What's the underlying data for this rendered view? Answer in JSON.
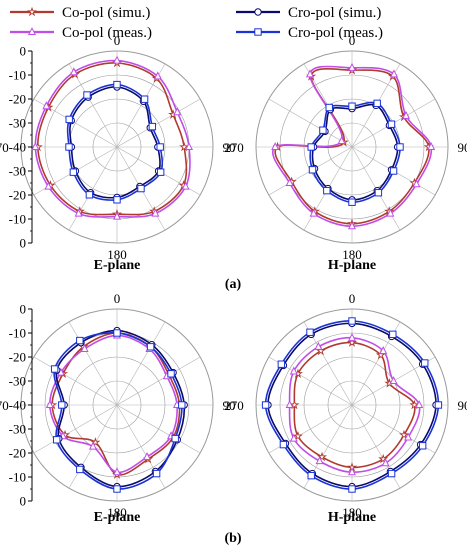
{
  "legend": {
    "entries": [
      {
        "label": "Co-pol  (simu.)",
        "color": "#b03a2e",
        "marker": "star"
      },
      {
        "label": "Co-pol  (meas.)",
        "color": "#c04de8",
        "marker": "triangle"
      },
      {
        "label": "Cro-pol (simu.)",
        "color": "#0a0a6e",
        "marker": "circle"
      },
      {
        "label": "Cro-pol (meas.)",
        "color": "#1a33d6",
        "marker": "square"
      }
    ]
  },
  "panel_labels": [
    "(a)",
    "(b)"
  ],
  "chart_data": [
    {
      "type": "polar",
      "panel": "(a)",
      "title": "E-plane",
      "angle_labels": [
        "0",
        "90",
        "180",
        "270"
      ],
      "r_ticks": [
        "0",
        "-10",
        "-20",
        "-30",
        "-40",
        "-30",
        "-20",
        "-10",
        "0"
      ],
      "rlim": [
        -40,
        0
      ],
      "angles": [
        0,
        30,
        60,
        90,
        120,
        150,
        180,
        210,
        240,
        270,
        300,
        330
      ],
      "series": [
        {
          "name": "Co-pol  (simu.)",
          "values": [
            -5,
            -7,
            -13,
            -12,
            -8,
            -9,
            -12,
            -9,
            -8,
            -7,
            -7,
            -5
          ]
        },
        {
          "name": "Co-pol  (meas.)",
          "values": [
            -4,
            -6,
            -11,
            -10,
            -7,
            -8,
            -11,
            -8,
            -7,
            -6,
            -6,
            -4
          ]
        },
        {
          "name": "Cro-pol (simu.)",
          "values": [
            -15,
            -18,
            -24,
            -23,
            -20,
            -21,
            -19,
            -18,
            -20,
            -21,
            -18,
            -16
          ]
        },
        {
          "name": "Cro-pol (meas.)",
          "values": [
            -14,
            -17,
            -23,
            -22,
            -19,
            -20,
            -18,
            -17,
            -19,
            -20,
            -17,
            -15
          ]
        }
      ]
    },
    {
      "type": "polar",
      "panel": "(a)",
      "title": "H-plane",
      "angle_labels": [
        "0",
        "90",
        "180",
        "270"
      ],
      "r_ticks": [
        "0",
        "-10",
        "-20",
        "-30",
        "-40",
        "-30",
        "-20",
        "-10",
        "0"
      ],
      "rlim": [
        -40,
        0
      ],
      "angles": [
        0,
        30,
        60,
        90,
        120,
        150,
        180,
        210,
        240,
        270,
        300,
        330
      ],
      "series": [
        {
          "name": "Co-pol  (simu.)",
          "values": [
            -8,
            -6,
            -15,
            -8,
            -10,
            -9,
            -8,
            -9,
            -11,
            -9,
            -36,
            -6
          ]
        },
        {
          "name": "Co-pol  (meas.)",
          "values": [
            -7,
            -5,
            -14,
            -7,
            -9,
            -8,
            -7,
            -8,
            -10,
            -8,
            -35,
            -5
          ]
        },
        {
          "name": "Cro-pol (simu.)",
          "values": [
            -24,
            -20,
            -22,
            -21,
            -21,
            -19,
            -18,
            -20,
            -22,
            -24,
            -27,
            -22
          ]
        },
        {
          "name": "Cro-pol (meas.)",
          "values": [
            -23,
            -19,
            -21,
            -20,
            -20,
            -18,
            -17,
            -19,
            -21,
            -23,
            -26,
            -21
          ]
        }
      ]
    },
    {
      "type": "polar",
      "panel": "(b)",
      "title": "E-plane",
      "angle_labels": [
        "0",
        "90",
        "180",
        "270"
      ],
      "r_ticks": [
        "0",
        "-10",
        "-20",
        "-30",
        "-40",
        "-30",
        "-20",
        "-10",
        "0"
      ],
      "rlim": [
        -40,
        0
      ],
      "angles": [
        0,
        30,
        60,
        90,
        120,
        150,
        180,
        210,
        240,
        270,
        300,
        330
      ],
      "series": [
        {
          "name": "Co-pol  (simu.)",
          "values": [
            -10,
            -12,
            -15,
            -14,
            -13,
            -14,
            -11,
            -22,
            -15,
            -13,
            -14,
            -12
          ]
        },
        {
          "name": "Co-pol  (meas.)",
          "values": [
            -11,
            -13,
            -16,
            -15,
            -14,
            -15,
            -12,
            -20,
            -14,
            -12,
            -13,
            -13
          ]
        },
        {
          "name": "Cro-pol (simu.)",
          "values": [
            -9,
            -11,
            -13,
            -12,
            -11,
            -8,
            -6,
            -10,
            -12,
            -18,
            -11,
            -10
          ]
        },
        {
          "name": "Cro-pol (meas.)",
          "values": [
            -10,
            -12,
            -14,
            -13,
            -12,
            -7,
            -5,
            -9,
            -11,
            -17,
            -10,
            -9
          ]
        }
      ]
    },
    {
      "type": "polar",
      "panel": "(b)",
      "title": "H-plane",
      "angle_labels": [
        "0",
        "90",
        "180",
        "270"
      ],
      "r_ticks": [
        "0",
        "-10",
        "-20",
        "-30",
        "-40",
        "-30",
        "-20",
        "-10",
        "0"
      ],
      "rlim": [
        -40,
        0
      ],
      "angles": [
        0,
        30,
        60,
        90,
        120,
        150,
        180,
        210,
        240,
        270,
        300,
        330
      ],
      "series": [
        {
          "name": "Co-pol  (simu.)",
          "values": [
            -14,
            -16,
            -22,
            -14,
            -15,
            -14,
            -14,
            -15,
            -14,
            -16,
            -14,
            -14
          ]
        },
        {
          "name": "Co-pol  (meas.)",
          "values": [
            -12,
            -14,
            -20,
            -12,
            -13,
            -12,
            -12,
            -13,
            -12,
            -14,
            -12,
            -12
          ]
        },
        {
          "name": "Cro-pol (simu.)",
          "values": [
            -6,
            -7,
            -6,
            -5,
            -7,
            -8,
            -6,
            -7,
            -8,
            -5,
            -7,
            -6
          ]
        },
        {
          "name": "Cro-pol (meas.)",
          "values": [
            -5,
            -6,
            -5,
            -4,
            -6,
            -7,
            -5,
            -6,
            -7,
            -4,
            -6,
            -5
          ]
        }
      ]
    }
  ]
}
